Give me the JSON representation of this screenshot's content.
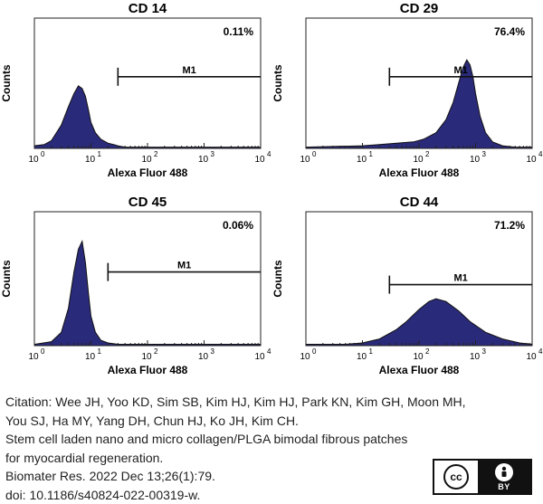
{
  "chart_data": [
    {
      "type": "area",
      "title": "CD 14",
      "xlabel": "Alexa Fluor 488",
      "ylabel": "Counts",
      "xscale": "log",
      "xlim": [
        1,
        10000
      ],
      "ylim": [
        0,
        100
      ],
      "xtick_labels": [
        "10",
        "0",
        "10",
        "1",
        "10",
        "2",
        "10",
        "3",
        "10",
        "4"
      ],
      "percent_label": "0.11%",
      "gate": {
        "label": "M1",
        "range": [
          30,
          10000
        ]
      },
      "fill_color": "#2a2a7a",
      "series": [
        {
          "x": [
            1,
            1.5,
            2,
            3,
            4,
            5,
            6,
            7,
            8,
            9,
            10,
            12,
            15,
            20,
            25,
            30,
            40,
            60,
            100,
            1000,
            10000
          ],
          "y": [
            2,
            3,
            6,
            18,
            32,
            42,
            48,
            46,
            40,
            30,
            20,
            12,
            7,
            4,
            3,
            2,
            1,
            1,
            1,
            1,
            1
          ]
        }
      ]
    },
    {
      "type": "area",
      "title": "CD 29",
      "xlabel": "Alexa Fluor 488",
      "ylabel": "Counts",
      "xscale": "log",
      "xlim": [
        1,
        10000
      ],
      "ylim": [
        0,
        100
      ],
      "xtick_labels": [
        "10",
        "0",
        "10",
        "1",
        "10",
        "2",
        "10",
        "3",
        "10",
        "4"
      ],
      "percent_label": "76.4%",
      "gate": {
        "label": "M1",
        "range": [
          30,
          10000
        ]
      },
      "fill_color": "#2a2a7a",
      "series": [
        {
          "x": [
            1,
            10,
            20,
            40,
            80,
            120,
            200,
            300,
            400,
            500,
            600,
            700,
            800,
            900,
            1000,
            1200,
            1500,
            2000,
            3000,
            5000,
            10000
          ],
          "y": [
            1,
            2,
            3,
            4,
            5,
            7,
            12,
            22,
            35,
            50,
            62,
            68,
            64,
            55,
            42,
            25,
            12,
            5,
            2,
            1,
            1
          ]
        }
      ]
    },
    {
      "type": "area",
      "title": "CD 45",
      "xlabel": "Alexa Fluor 488",
      "ylabel": "Counts",
      "xscale": "log",
      "xlim": [
        1,
        10000
      ],
      "ylim": [
        0,
        100
      ],
      "xtick_labels": [
        "10",
        "0",
        "10",
        "1",
        "10",
        "2",
        "10",
        "3",
        "10",
        "4"
      ],
      "percent_label": "0.06%",
      "gate": {
        "label": "M1",
        "range": [
          20,
          10000
        ]
      },
      "fill_color": "#2a2a7a",
      "series": [
        {
          "x": [
            1,
            2,
            3,
            4,
            5,
            6,
            7,
            8,
            9,
            10,
            12,
            15,
            20,
            30,
            50,
            100,
            1000,
            10000
          ],
          "y": [
            1,
            3,
            10,
            28,
            55,
            72,
            78,
            62,
            40,
            22,
            10,
            4,
            2,
            1,
            1,
            1,
            1,
            1
          ]
        }
      ]
    },
    {
      "type": "area",
      "title": "CD 44",
      "xlabel": "Alexa Fluor 488",
      "ylabel": "Counts",
      "xscale": "log",
      "xlim": [
        1,
        10000
      ],
      "ylim": [
        0,
        100
      ],
      "xtick_labels": [
        "10",
        "0",
        "10",
        "1",
        "10",
        "2",
        "10",
        "3",
        "10",
        "4"
      ],
      "percent_label": "71.2%",
      "gate": {
        "label": "M1",
        "range": [
          30,
          10000
        ]
      },
      "fill_color": "#2a2a7a",
      "series": [
        {
          "x": [
            1,
            5,
            10,
            20,
            40,
            60,
            100,
            150,
            200,
            300,
            500,
            800,
            1500,
            3000,
            6000,
            10000
          ],
          "y": [
            1,
            1,
            2,
            5,
            12,
            18,
            27,
            33,
            35,
            33,
            26,
            18,
            10,
            5,
            2,
            1
          ]
        }
      ]
    }
  ],
  "citation": {
    "label": "Citation",
    "line1_rest": ": Wee JH, Yoo KD, Sim SB, Kim HJ, Kim HJ, Park KN, Kim GH, Moon MH,",
    "line2": "You SJ, Ha MY, Yang DH, Chun HJ, Ko JH, Kim CH.",
    "line3": "Stem cell laden nano and micro collagen/PLGA bimodal fibrous patches",
    "line4": "for myocardial regeneration.",
    "line5": "Biomater Res. 2022 Dec 13;26(1):79.",
    "line6": "doi: 10.1186/s40824-022-00319-w."
  },
  "license": {
    "cc_text": "cc",
    "by_text": "BY",
    "icon": "person-icon"
  }
}
